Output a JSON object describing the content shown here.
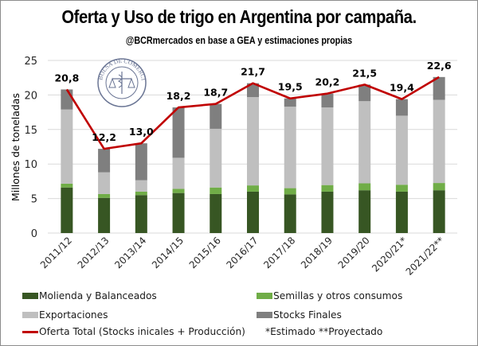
{
  "chart_data": {
    "type": "bar",
    "stacked": true,
    "title": "Oferta y Uso de trigo en Argentina por campaña.",
    "subtitle": "@BCRmercados  en base a GEA y estimaciones propias",
    "xlabel": "",
    "ylabel": "Millones de toneladas",
    "ylim": [
      0,
      25
    ],
    "yticks": [
      0,
      5,
      10,
      15,
      20,
      25
    ],
    "grid": true,
    "logo": "Bolsa de Comercio de Rosario",
    "categories": [
      "2011/12",
      "2012/13",
      "2013/14",
      "2014/15",
      "2015/16",
      "2016/17",
      "2017/18",
      "2018/19",
      "2019/20",
      "2020/21*",
      "2021/22**"
    ],
    "series": [
      {
        "name": "Molienda y Balanceados",
        "type": "bar",
        "color": "#375623",
        "values": [
          6.6,
          5.1,
          5.5,
          5.8,
          5.65,
          6.0,
          5.6,
          6.0,
          6.2,
          6.0,
          6.2
        ]
      },
      {
        "name": "Semillas y otros consumos",
        "type": "bar",
        "color": "#70AD47",
        "values": [
          0.55,
          0.55,
          0.5,
          0.6,
          0.95,
          0.9,
          0.9,
          0.95,
          1.0,
          1.0,
          1.05
        ]
      },
      {
        "name": "Exportaciones",
        "type": "bar",
        "color": "#BFBFBF",
        "values": [
          10.75,
          3.15,
          1.65,
          4.5,
          8.5,
          12.8,
          11.8,
          11.25,
          11.9,
          10.0,
          12.05
        ]
      },
      {
        "name": "Stocks Finales",
        "type": "bar",
        "color": "#7F7F7F",
        "values": [
          2.9,
          3.4,
          5.35,
          7.3,
          3.6,
          2.0,
          1.2,
          2.0,
          2.4,
          2.4,
          3.3
        ]
      },
      {
        "name": "Oferta Total (Stocks inicales + Producción)",
        "type": "line",
        "color": "#C00000",
        "values": [
          20.8,
          12.2,
          13.0,
          18.2,
          18.7,
          21.7,
          19.5,
          20.2,
          21.5,
          19.4,
          22.6
        ],
        "labels": [
          "20,8",
          "12,2",
          "13,0",
          "18,2",
          "18,7",
          "21,7",
          "19,5",
          "20,2",
          "21,5",
          "19,4",
          "22,6"
        ]
      }
    ],
    "legend_position": "bottom",
    "notes": [
      "*Estimado",
      "**Proyectado"
    ]
  }
}
